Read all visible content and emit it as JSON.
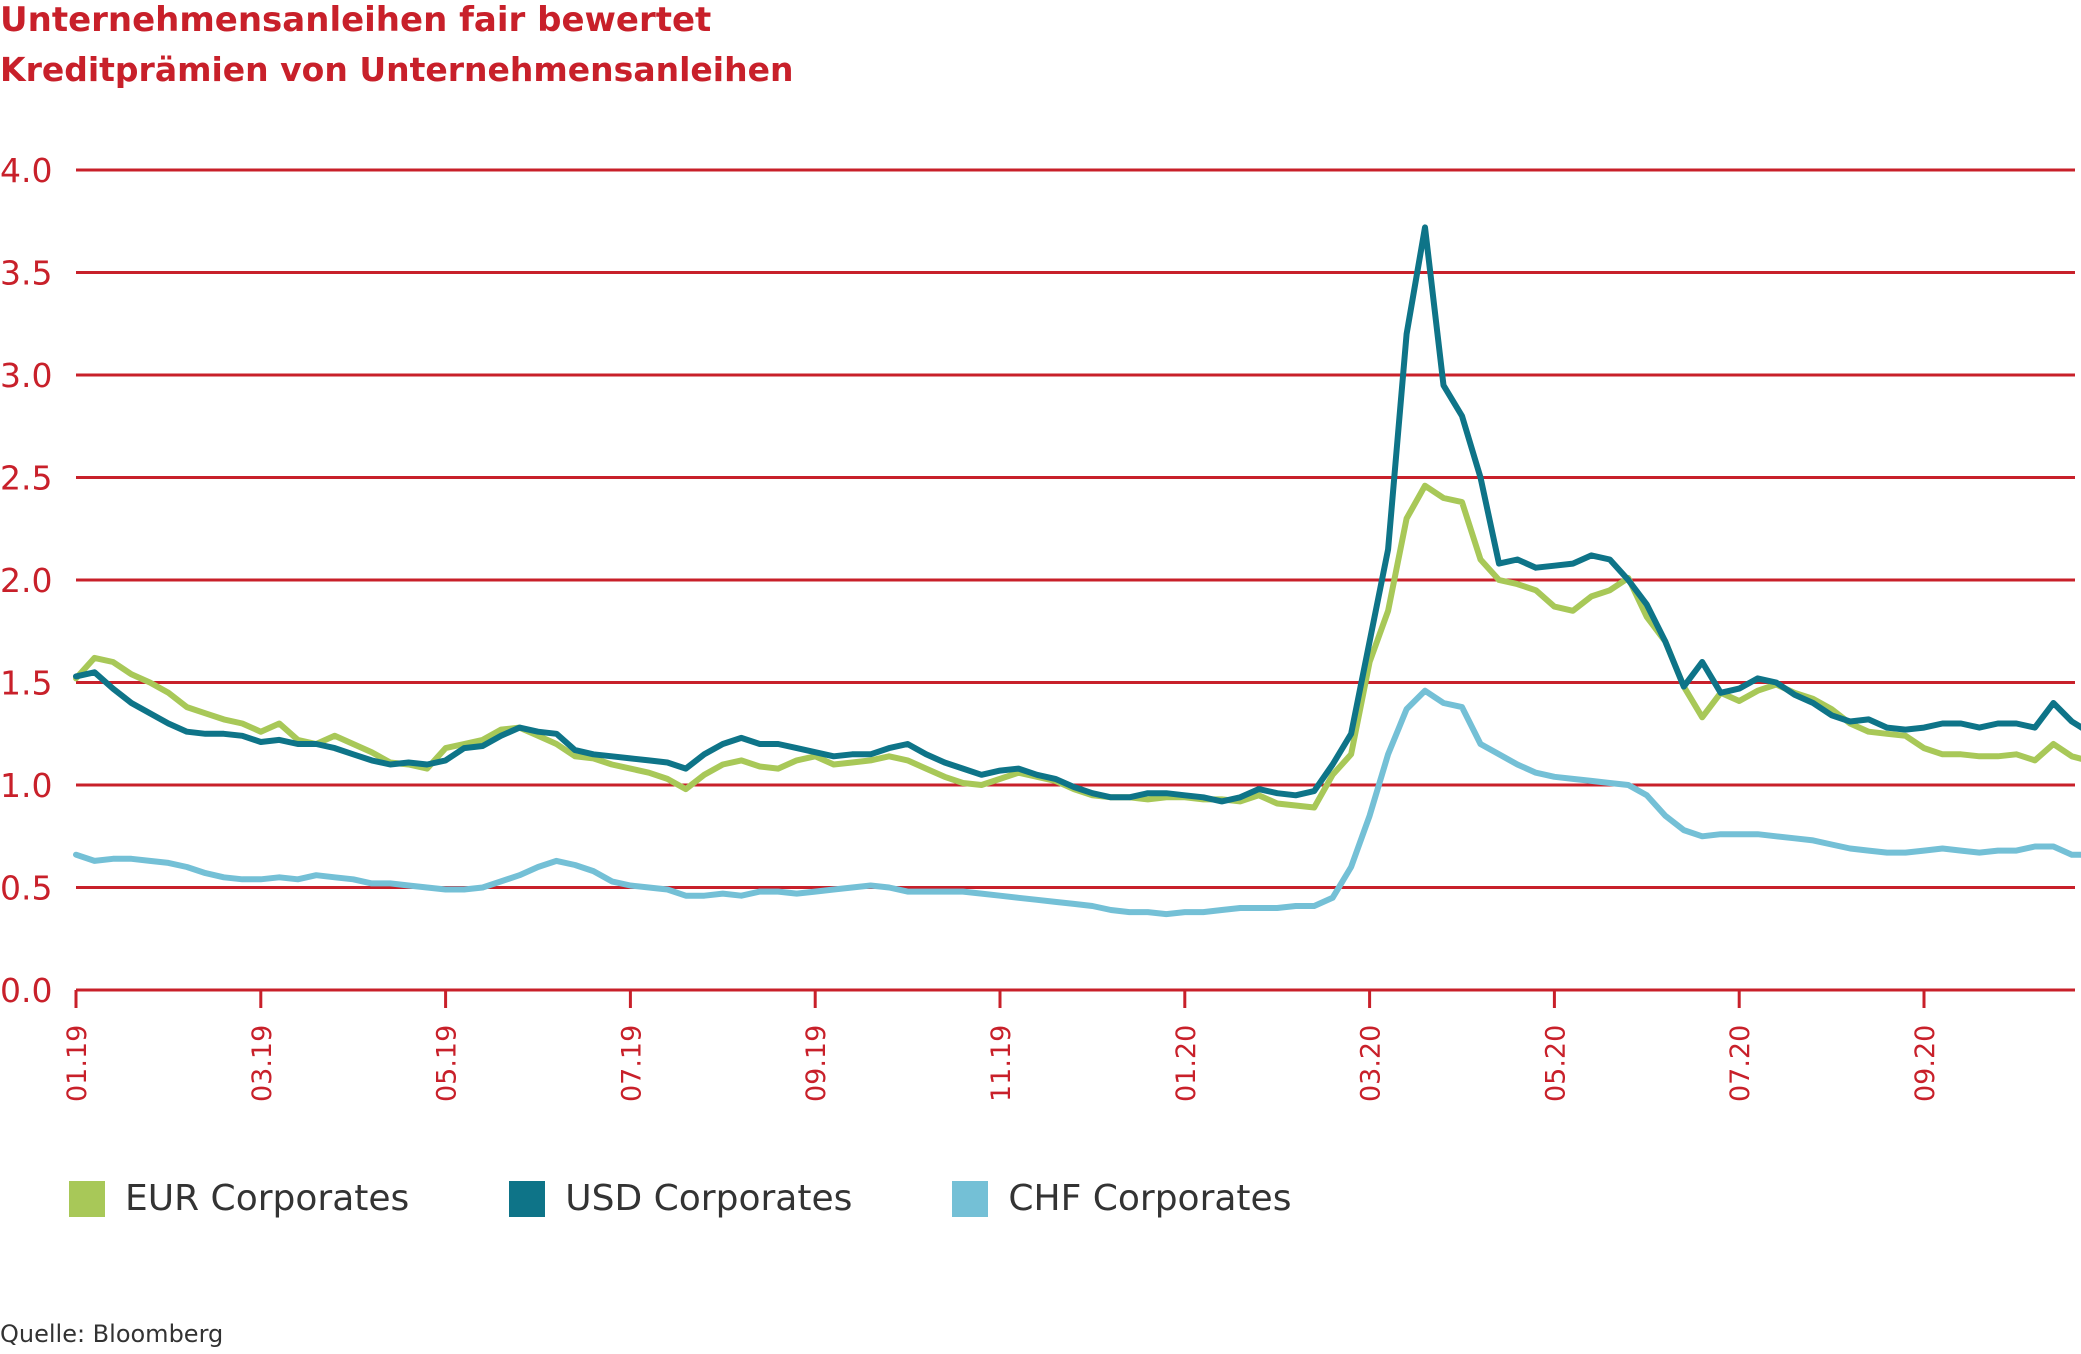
{
  "chart_data": {
    "type": "line",
    "title": "Unternehmensanleihen fair bewertet",
    "subtitle": "Kreditprämien von Unternehmensanleihen",
    "source": "Quelle: Bloomberg",
    "xlabel": "",
    "ylabel": "",
    "ylim": [
      0,
      4
    ],
    "yticks": [
      "0.0",
      "0.5",
      "1.0",
      "1.5",
      "2.0",
      "2.5",
      "3.0",
      "3.5",
      "4.0"
    ],
    "xticks": [
      "01.19",
      "03.19",
      "05.19",
      "07.19",
      "09.19",
      "11.19",
      "01.20",
      "03.20",
      "05.20",
      "07.20",
      "09.20"
    ],
    "xlim_months": [
      0,
      21.85
    ],
    "grid": true,
    "legend_position": "bottom",
    "colors": {
      "text": "#c8202a",
      "grid": "#c8202a",
      "EUR Corporates": "#a8c858",
      "USD Corporates": "#0e7488",
      "CHF Corporates": "#74c0d6"
    },
    "series": [
      {
        "name": "EUR Corporates",
        "x": [
          0,
          0.2,
          0.4,
          0.6,
          0.8,
          1.0,
          1.2,
          1.4,
          1.6,
          1.8,
          2.0,
          2.2,
          2.4,
          2.6,
          2.8,
          3.0,
          3.2,
          3.4,
          3.6,
          3.8,
          4.0,
          4.2,
          4.4,
          4.6,
          4.8,
          5.0,
          5.2,
          5.4,
          5.6,
          5.8,
          6.0,
          6.2,
          6.4,
          6.6,
          6.8,
          7.0,
          7.2,
          7.4,
          7.6,
          7.8,
          8.0,
          8.2,
          8.4,
          8.6,
          8.8,
          9.0,
          9.2,
          9.4,
          9.6,
          9.8,
          10.0,
          10.2,
          10.4,
          10.6,
          10.8,
          11.0,
          11.2,
          11.4,
          11.6,
          11.8,
          12.0,
          12.2,
          12.4,
          12.6,
          12.8,
          13.0,
          13.2,
          13.4,
          13.6,
          13.8,
          14.0,
          14.2,
          14.4,
          14.6,
          14.8,
          15.0,
          15.2,
          15.4,
          15.6,
          15.8,
          16.0,
          16.2,
          16.4,
          16.6,
          16.8,
          17.0,
          17.2,
          17.4,
          17.6,
          17.8,
          18.0,
          18.2,
          18.4,
          18.6,
          18.8,
          19.0,
          19.2,
          19.4,
          19.6,
          19.8,
          20.0,
          20.2,
          20.4,
          20.6,
          20.8,
          21.0,
          21.2,
          21.4,
          21.6,
          21.85
        ],
        "values": [
          1.52,
          1.62,
          1.6,
          1.54,
          1.5,
          1.45,
          1.38,
          1.35,
          1.32,
          1.3,
          1.26,
          1.3,
          1.22,
          1.2,
          1.24,
          1.2,
          1.16,
          1.11,
          1.1,
          1.08,
          1.18,
          1.2,
          1.22,
          1.27,
          1.28,
          1.24,
          1.2,
          1.14,
          1.13,
          1.1,
          1.08,
          1.06,
          1.03,
          0.98,
          1.05,
          1.1,
          1.12,
          1.09,
          1.08,
          1.12,
          1.14,
          1.1,
          1.11,
          1.12,
          1.14,
          1.12,
          1.08,
          1.04,
          1.01,
          1.0,
          1.03,
          1.06,
          1.04,
          1.02,
          0.98,
          0.95,
          0.94,
          0.94,
          0.93,
          0.94,
          0.94,
          0.93,
          0.93,
          0.92,
          0.95,
          0.91,
          0.9,
          0.89,
          1.05,
          1.15,
          1.6,
          1.85,
          2.3,
          2.46,
          2.4,
          2.38,
          2.1,
          2.0,
          1.98,
          1.95,
          1.87,
          1.85,
          1.92,
          1.95,
          2.01,
          1.82,
          1.7,
          1.48,
          1.33,
          1.45,
          1.41,
          1.46,
          1.49,
          1.45,
          1.42,
          1.37,
          1.3,
          1.26,
          1.25,
          1.24,
          1.18,
          1.15,
          1.15,
          1.14,
          1.14,
          1.15,
          1.12,
          1.2,
          1.14,
          1.11
        ]
      },
      {
        "name": "USD Corporates",
        "x": [
          0,
          0.2,
          0.4,
          0.6,
          0.8,
          1.0,
          1.2,
          1.4,
          1.6,
          1.8,
          2.0,
          2.2,
          2.4,
          2.6,
          2.8,
          3.0,
          3.2,
          3.4,
          3.6,
          3.8,
          4.0,
          4.2,
          4.4,
          4.6,
          4.8,
          5.0,
          5.2,
          5.4,
          5.6,
          5.8,
          6.0,
          6.2,
          6.4,
          6.6,
          6.8,
          7.0,
          7.2,
          7.4,
          7.6,
          7.8,
          8.0,
          8.2,
          8.4,
          8.6,
          8.8,
          9.0,
          9.2,
          9.4,
          9.6,
          9.8,
          10.0,
          10.2,
          10.4,
          10.6,
          10.8,
          11.0,
          11.2,
          11.4,
          11.6,
          11.8,
          12.0,
          12.2,
          12.4,
          12.6,
          12.8,
          13.0,
          13.2,
          13.4,
          13.6,
          13.8,
          14.0,
          14.2,
          14.4,
          14.6,
          14.8,
          15.0,
          15.2,
          15.4,
          15.6,
          15.8,
          16.0,
          16.2,
          16.4,
          16.6,
          16.8,
          17.0,
          17.2,
          17.4,
          17.6,
          17.8,
          18.0,
          18.2,
          18.4,
          18.6,
          18.8,
          19.0,
          19.2,
          19.4,
          19.6,
          19.8,
          20.0,
          20.2,
          20.4,
          20.6,
          20.8,
          21.0,
          21.2,
          21.4,
          21.6,
          21.85
        ],
        "values": [
          1.53,
          1.55,
          1.47,
          1.4,
          1.35,
          1.3,
          1.26,
          1.25,
          1.25,
          1.24,
          1.21,
          1.22,
          1.2,
          1.2,
          1.18,
          1.15,
          1.12,
          1.1,
          1.11,
          1.1,
          1.12,
          1.18,
          1.19,
          1.24,
          1.28,
          1.26,
          1.25,
          1.17,
          1.15,
          1.14,
          1.13,
          1.12,
          1.11,
          1.08,
          1.15,
          1.2,
          1.23,
          1.2,
          1.2,
          1.18,
          1.16,
          1.14,
          1.15,
          1.15,
          1.18,
          1.2,
          1.15,
          1.11,
          1.08,
          1.05,
          1.07,
          1.08,
          1.05,
          1.03,
          0.99,
          0.96,
          0.94,
          0.94,
          0.96,
          0.96,
          0.95,
          0.94,
          0.92,
          0.94,
          0.98,
          0.96,
          0.95,
          0.97,
          1.1,
          1.25,
          1.7,
          2.15,
          3.2,
          3.72,
          2.95,
          2.8,
          2.5,
          2.08,
          2.1,
          2.06,
          2.07,
          2.08,
          2.12,
          2.1,
          2.0,
          1.88,
          1.7,
          1.48,
          1.6,
          1.45,
          1.47,
          1.52,
          1.5,
          1.44,
          1.4,
          1.34,
          1.31,
          1.32,
          1.28,
          1.27,
          1.28,
          1.3,
          1.3,
          1.28,
          1.3,
          1.3,
          1.28,
          1.4,
          1.31,
          1.24
        ]
      },
      {
        "name": "CHF Corporates",
        "x": [
          0,
          0.2,
          0.4,
          0.6,
          0.8,
          1.0,
          1.2,
          1.4,
          1.6,
          1.8,
          2.0,
          2.2,
          2.4,
          2.6,
          2.8,
          3.0,
          3.2,
          3.4,
          3.6,
          3.8,
          4.0,
          4.2,
          4.4,
          4.6,
          4.8,
          5.0,
          5.2,
          5.4,
          5.6,
          5.8,
          6.0,
          6.2,
          6.4,
          6.6,
          6.8,
          7.0,
          7.2,
          7.4,
          7.6,
          7.8,
          8.0,
          8.2,
          8.4,
          8.6,
          8.8,
          9.0,
          9.2,
          9.4,
          9.6,
          9.8,
          10.0,
          10.2,
          10.4,
          10.6,
          10.8,
          11.0,
          11.2,
          11.4,
          11.6,
          11.8,
          12.0,
          12.2,
          12.4,
          12.6,
          12.8,
          13.0,
          13.2,
          13.4,
          13.6,
          13.8,
          14.0,
          14.2,
          14.4,
          14.6,
          14.8,
          15.0,
          15.2,
          15.4,
          15.6,
          15.8,
          16.0,
          16.2,
          16.4,
          16.6,
          16.8,
          17.0,
          17.2,
          17.4,
          17.6,
          17.8,
          18.0,
          18.2,
          18.4,
          18.6,
          18.8,
          19.0,
          19.2,
          19.4,
          19.6,
          19.8,
          20.0,
          20.2,
          20.4,
          20.6,
          20.8,
          21.0,
          21.2,
          21.4,
          21.6,
          21.85
        ],
        "values": [
          0.66,
          0.63,
          0.64,
          0.64,
          0.63,
          0.62,
          0.6,
          0.57,
          0.55,
          0.54,
          0.54,
          0.55,
          0.54,
          0.56,
          0.55,
          0.54,
          0.52,
          0.52,
          0.51,
          0.5,
          0.49,
          0.49,
          0.5,
          0.53,
          0.56,
          0.6,
          0.63,
          0.61,
          0.58,
          0.53,
          0.51,
          0.5,
          0.49,
          0.46,
          0.46,
          0.47,
          0.46,
          0.48,
          0.48,
          0.47,
          0.48,
          0.49,
          0.5,
          0.51,
          0.5,
          0.48,
          0.48,
          0.48,
          0.48,
          0.47,
          0.46,
          0.45,
          0.44,
          0.43,
          0.42,
          0.41,
          0.39,
          0.38,
          0.38,
          0.37,
          0.38,
          0.38,
          0.39,
          0.4,
          0.4,
          0.4,
          0.41,
          0.41,
          0.45,
          0.6,
          0.85,
          1.15,
          1.37,
          1.46,
          1.4,
          1.38,
          1.2,
          1.15,
          1.1,
          1.06,
          1.04,
          1.03,
          1.02,
          1.01,
          1.0,
          0.95,
          0.85,
          0.78,
          0.75,
          0.76,
          0.76,
          0.76,
          0.75,
          0.74,
          0.73,
          0.71,
          0.69,
          0.68,
          0.67,
          0.67,
          0.68,
          0.69,
          0.68,
          0.67,
          0.68,
          0.68,
          0.7,
          0.7,
          0.66,
          0.66
        ]
      }
    ]
  }
}
